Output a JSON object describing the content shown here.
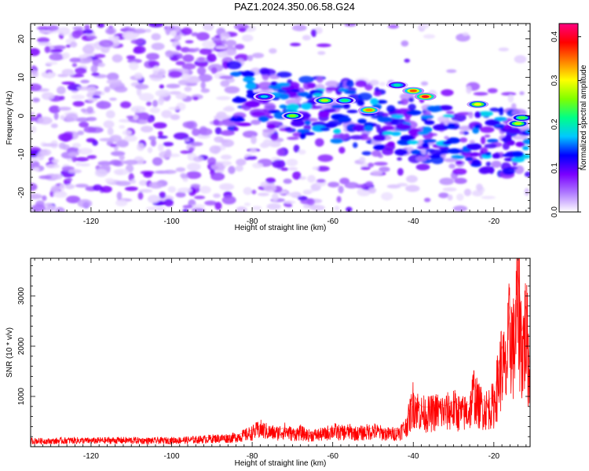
{
  "title": "PAZ1.2024.350.06.58.G24",
  "chart_data": [
    {
      "type": "heatmap",
      "xlabel": "Height of straight line (km)",
      "ylabel": "Frequency (Hz)",
      "xlim": [
        -135,
        -11
      ],
      "ylim": [
        -25,
        24
      ],
      "xticks": [
        -120,
        -100,
        -80,
        -60,
        -40,
        -20
      ],
      "yticks": [
        -20,
        -10,
        0,
        10,
        20
      ],
      "colorbar": {
        "label": "Normalized spectral amplitude",
        "range": [
          0.0,
          0.43
        ],
        "ticks": [
          0.0,
          0.1,
          0.2,
          0.3,
          0.4
        ],
        "colors": [
          "#ffffff",
          "#b07cff",
          "#7a00ff",
          "#0000ff",
          "#00c8ff",
          "#00ff88",
          "#80ff00",
          "#ffff00",
          "#ff8000",
          "#ff0000",
          "#ff0080"
        ]
      },
      "features": [
        {
          "x": -77,
          "y": 5,
          "value": 0.18
        },
        {
          "x": -70,
          "y": 0,
          "value": 0.26
        },
        {
          "x": -62,
          "y": 4,
          "value": 0.28
        },
        {
          "x": -57,
          "y": 4,
          "value": 0.22
        },
        {
          "x": -51,
          "y": 1.5,
          "value": 0.34
        },
        {
          "x": -44,
          "y": 8,
          "value": 0.2
        },
        {
          "x": -40,
          "y": 6.5,
          "value": 0.36
        },
        {
          "x": -37,
          "y": 5,
          "value": 0.4
        },
        {
          "x": -24,
          "y": 3,
          "value": 0.3
        },
        {
          "x": -14,
          "y": -2,
          "value": 0.28
        },
        {
          "x": -13,
          "y": -0.5,
          "value": 0.24
        }
      ]
    },
    {
      "type": "line",
      "xlabel": "Height of straight line (km)",
      "ylabel": "SNR (10 * v/v)",
      "xlim": [
        -135,
        -11
      ],
      "ylim": [
        0,
        3750
      ],
      "xticks": [
        -120,
        -100,
        -80,
        -60,
        -40,
        -20
      ],
      "yticks": [
        1000,
        2000,
        3000
      ],
      "line_color": "#ff0000",
      "series": [
        {
          "x": [
            -135,
            -130,
            -125,
            -120,
            -115,
            -110,
            -105,
            -100,
            -95,
            -90,
            -85,
            -82,
            -80,
            -78,
            -76,
            -74,
            -72,
            -70,
            -68,
            -66,
            -64,
            -62,
            -60,
            -58,
            -56,
            -54,
            -52,
            -50,
            -48,
            -46,
            -44,
            -42,
            -41,
            -40,
            -39,
            -38,
            -36,
            -34,
            -32,
            -30,
            -28,
            -26,
            -25,
            -24,
            -22,
            -20,
            -19,
            -18,
            -17,
            -16,
            -15,
            -14,
            -13,
            -12,
            -11
          ],
          "values": [
            140,
            130,
            150,
            140,
            150,
            150,
            140,
            150,
            160,
            190,
            210,
            270,
            330,
            420,
            350,
            320,
            380,
            300,
            330,
            270,
            280,
            300,
            380,
            330,
            360,
            310,
            340,
            380,
            330,
            300,
            320,
            450,
            700,
            1050,
            900,
            800,
            780,
            850,
            820,
            900,
            780,
            850,
            1300,
            1000,
            900,
            1000,
            1500,
            2000,
            1700,
            2800,
            2300,
            3600,
            2300,
            2800,
            1500
          ]
        }
      ]
    }
  ]
}
